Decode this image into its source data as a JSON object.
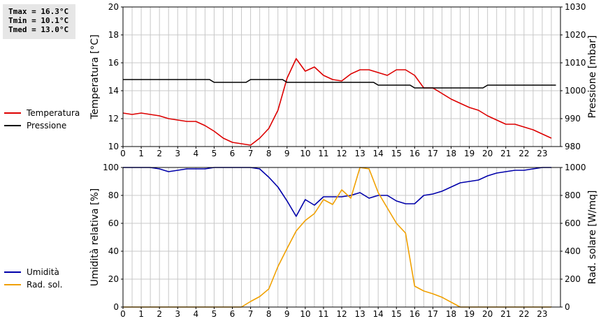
{
  "stats": {
    "tmax": "Tmax = 16.3°C",
    "tmin": "Tmin = 10.1°C",
    "tmed": "Tmed = 13.0°C"
  },
  "colors": {
    "temperatura": "#dd0000",
    "pressione": "#000000",
    "umidita": "#0000aa",
    "radsol": "#f0a000",
    "grid": "#c8c8c8"
  },
  "legend_top": [
    {
      "label": "Temperatura",
      "color": "#dd0000"
    },
    {
      "label": "Pressione",
      "color": "#000000"
    }
  ],
  "legend_bottom": [
    {
      "label": "Umidità",
      "color": "#0000aa"
    },
    {
      "label": "Rad. sol.",
      "color": "#f0a000"
    }
  ],
  "chart_data": [
    {
      "type": "line",
      "xlabel": "",
      "xlim": [
        0,
        24
      ],
      "xticks": [
        0,
        1,
        2,
        3,
        4,
        5,
        6,
        7,
        8,
        9,
        10,
        11,
        12,
        13,
        14,
        15,
        16,
        17,
        18,
        19,
        20,
        21,
        22,
        23
      ],
      "ylabel_left": "Temperatura [°C]",
      "ylim_left": [
        10,
        20
      ],
      "yticks_left": [
        10,
        12,
        14,
        16,
        18,
        20
      ],
      "ylabel_right": "Pressione [mbar]",
      "ylim_right": [
        980,
        1030
      ],
      "yticks_right": [
        980,
        990,
        1000,
        1010,
        1020,
        1030
      ],
      "grid": true,
      "series": [
        {
          "name": "Temperatura",
          "axis": "left",
          "color": "#dd0000",
          "x": [
            0,
            0.5,
            1,
            1.5,
            2,
            2.5,
            3,
            3.5,
            4,
            4.5,
            5,
            5.5,
            6,
            6.5,
            7,
            7.5,
            8,
            8.5,
            9,
            9.5,
            10,
            10.5,
            11,
            11.5,
            12,
            12.5,
            13,
            13.5,
            14,
            14.5,
            15,
            15.5,
            16,
            16.5,
            17,
            17.5,
            18,
            18.5,
            19,
            19.5,
            20,
            20.5,
            21,
            21.5,
            22,
            22.5,
            23,
            23.5
          ],
          "y": [
            12.4,
            12.3,
            12.4,
            12.3,
            12.2,
            12.0,
            11.9,
            11.8,
            11.8,
            11.5,
            11.1,
            10.6,
            10.3,
            10.2,
            10.1,
            10.6,
            11.3,
            12.6,
            14.9,
            16.3,
            15.4,
            15.7,
            15.1,
            14.8,
            14.7,
            15.2,
            15.5,
            15.5,
            15.3,
            15.1,
            15.5,
            15.5,
            15.1,
            14.2,
            14.2,
            13.8,
            13.4,
            13.1,
            12.8,
            12.6,
            12.2,
            11.9,
            11.6,
            11.6,
            11.4,
            11.2,
            10.9,
            10.6
          ]
        },
        {
          "name": "Pressione",
          "axis": "right",
          "color": "#000000",
          "x": [
            0,
            4.75,
            5,
            6.75,
            7,
            8.75,
            9,
            13.75,
            14,
            15.75,
            16,
            19.75,
            20,
            23.75
          ],
          "y": [
            1004,
            1004,
            1003,
            1003,
            1004,
            1004,
            1003,
            1003,
            1002,
            1002,
            1001,
            1001,
            1002,
            1002
          ]
        }
      ]
    },
    {
      "type": "line",
      "xlabel": "",
      "xlim": [
        0,
        24
      ],
      "xticks": [
        0,
        1,
        2,
        3,
        4,
        5,
        6,
        7,
        8,
        9,
        10,
        11,
        12,
        13,
        14,
        15,
        16,
        17,
        18,
        19,
        20,
        21,
        22,
        23
      ],
      "ylabel_left": "Umidità relativa [%]",
      "ylim_left": [
        0,
        100
      ],
      "yticks_left": [
        0,
        20,
        40,
        60,
        80,
        100
      ],
      "ylabel_right": "Rad. solare [W/mq]",
      "ylim_right": [
        0,
        1000
      ],
      "yticks_right": [
        0,
        200,
        400,
        600,
        800,
        1000
      ],
      "grid": true,
      "series": [
        {
          "name": "Umidità",
          "axis": "left",
          "color": "#0000aa",
          "x": [
            0,
            0.5,
            1,
            1.5,
            2,
            2.5,
            3,
            3.5,
            4,
            4.5,
            5,
            5.5,
            6,
            6.5,
            7,
            7.5,
            8,
            8.5,
            9,
            9.5,
            10,
            10.5,
            11,
            11.5,
            12,
            12.5,
            13,
            13.5,
            14,
            14.5,
            15,
            15.5,
            16,
            16.5,
            17,
            17.5,
            18,
            18.5,
            19,
            19.5,
            20,
            20.5,
            21,
            21.5,
            22,
            22.5,
            23,
            23.5
          ],
          "y": [
            100,
            100,
            100,
            100,
            99,
            97,
            98,
            99,
            99,
            99,
            100,
            100,
            100,
            100,
            100,
            99,
            93,
            86,
            76,
            65,
            77,
            73,
            79,
            79,
            79,
            80,
            82,
            78,
            80,
            80,
            76,
            74,
            74,
            80,
            81,
            83,
            86,
            89,
            90,
            91,
            94,
            96,
            97,
            98,
            98,
            99,
            100,
            100
          ]
        },
        {
          "name": "Rad. sol.",
          "axis": "right",
          "color": "#f0a000",
          "x": [
            0,
            0.5,
            1,
            1.5,
            2,
            2.5,
            3,
            3.5,
            4,
            4.5,
            5,
            5.5,
            6,
            6.5,
            7,
            7.5,
            8,
            8.5,
            9,
            9.5,
            10,
            10.5,
            11,
            11.5,
            12,
            12.5,
            13,
            13.5,
            14,
            14.5,
            15,
            15.5,
            16,
            16.5,
            17,
            17.5,
            18,
            18.5,
            19,
            19.5,
            20,
            20.5,
            21,
            21.5,
            22,
            22.5,
            23,
            23.5
          ],
          "y": [
            0,
            0,
            0,
            0,
            0,
            0,
            0,
            0,
            0,
            0,
            0,
            0,
            0,
            0,
            40,
            75,
            130,
            290,
            420,
            545,
            620,
            670,
            770,
            735,
            840,
            780,
            1000,
            990,
            820,
            710,
            600,
            530,
            150,
            115,
            95,
            70,
            35,
            0,
            0,
            0,
            0,
            0,
            0,
            0,
            0,
            0,
            0,
            0
          ]
        }
      ]
    }
  ]
}
